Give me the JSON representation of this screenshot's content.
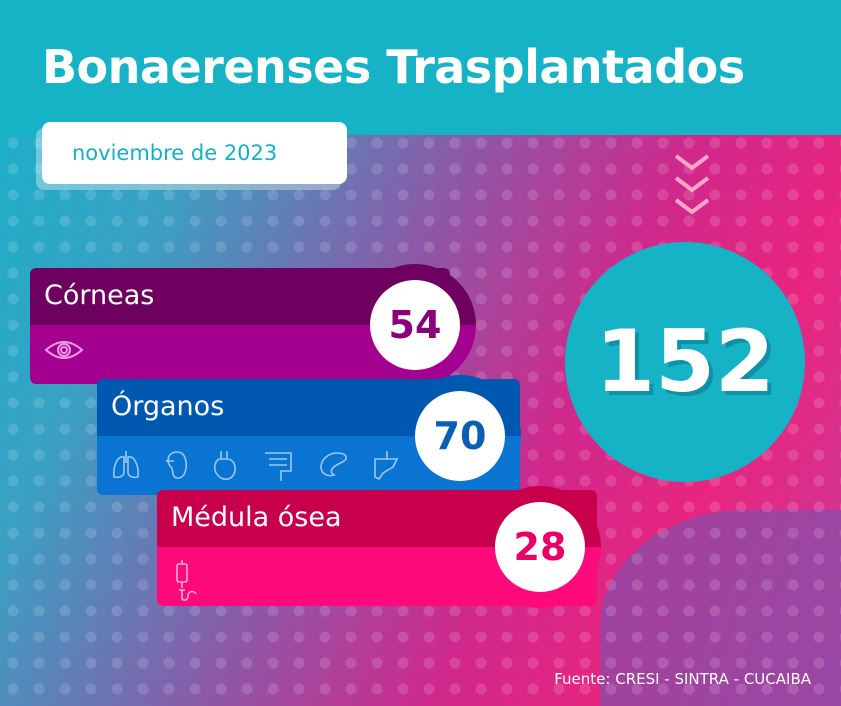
{
  "title": "Bonaerenses Trasplantados",
  "date": "noviembre de 2023",
  "total": "152",
  "categories": [
    {
      "label": "Córneas",
      "value": "54",
      "icons": [
        "eye-icon"
      ],
      "colors": {
        "top": "#6e005f",
        "bottom": "#a3008f",
        "number": "#8a0079"
      }
    },
    {
      "label": "Órganos",
      "value": "70",
      "icons": [
        "lungs-icon",
        "kidney-icon",
        "heart-icon",
        "intestine-icon",
        "pancreas-icon",
        "liver-icon"
      ],
      "colors": {
        "top": "#0058b0",
        "bottom": "#0a74d2",
        "number": "#0a5fb5"
      }
    },
    {
      "label": "Médula ósea",
      "value": "28",
      "icons": [
        "iv-bag-icon"
      ],
      "colors": {
        "top": "#c8004b",
        "bottom": "#ff0a7a",
        "number": "#e8006a"
      }
    }
  ],
  "source": "Fuente: CRESI - SINTRA - CUCAIBA"
}
